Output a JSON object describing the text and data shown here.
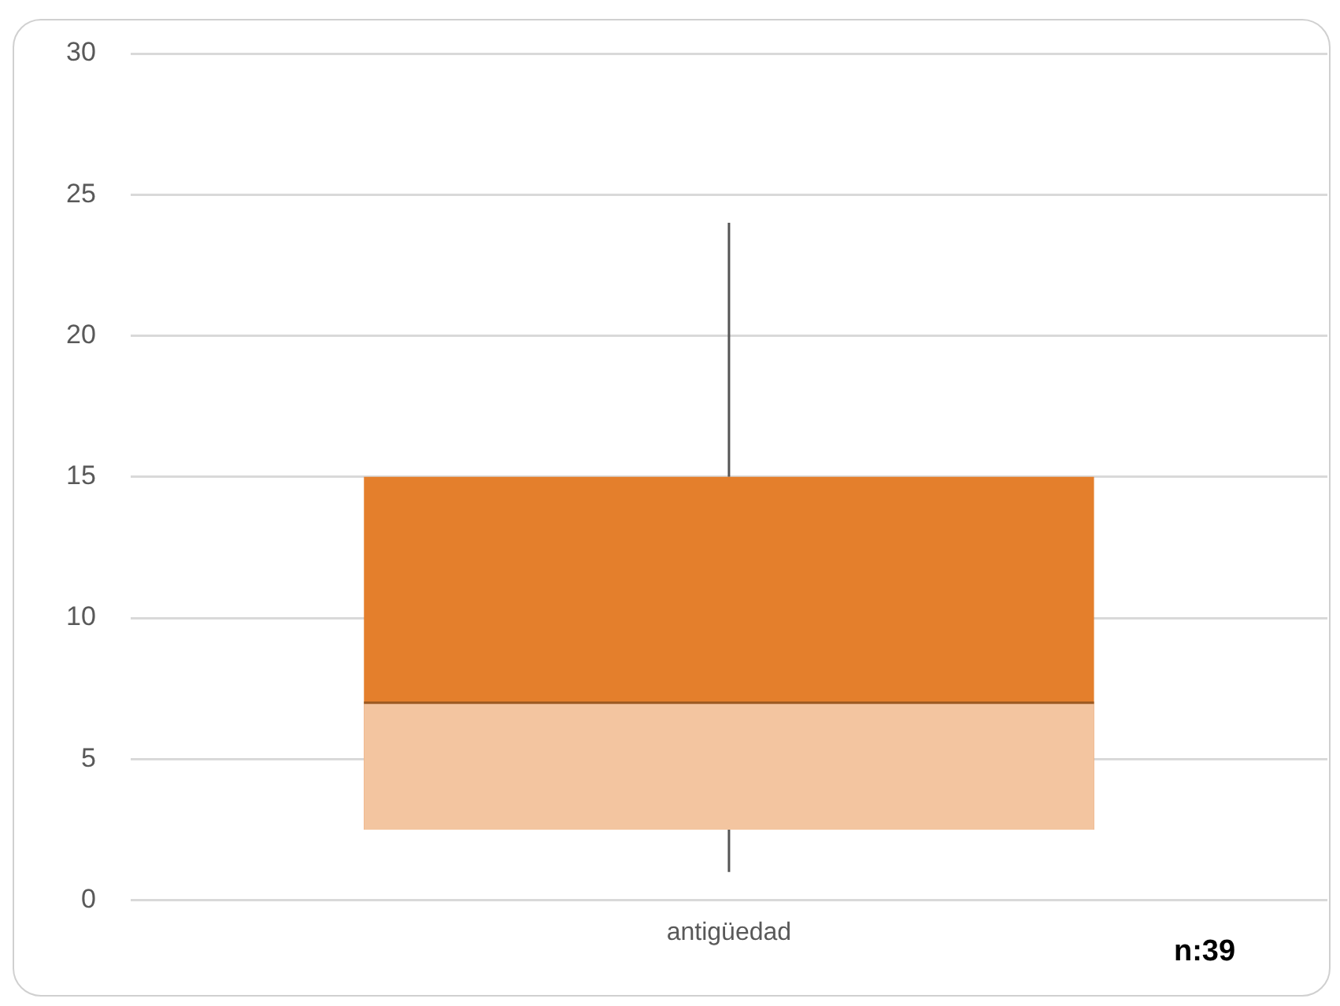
{
  "chart_data": {
    "type": "box",
    "categories": [
      "antigüedad"
    ],
    "series": [
      {
        "color": "#e47f2c",
        "boxes": [
          {
            "low": 1,
            "q1": 2.5,
            "median": 7,
            "q3": 15,
            "high": 24
          }
        ]
      }
    ],
    "ylim": [
      0,
      30
    ],
    "yticks": [
      0,
      5,
      10,
      15,
      20,
      25,
      30
    ],
    "grid": "y",
    "legend": false,
    "annotations": [
      "n:39"
    ]
  }
}
